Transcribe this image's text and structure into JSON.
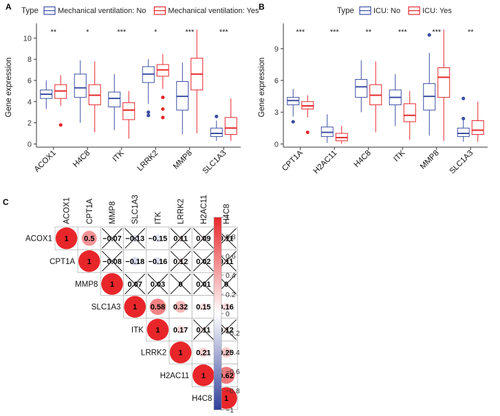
{
  "colors": {
    "no": "#3b4ea3",
    "yes": "#e8262a",
    "cell_border": "#b5b5b5",
    "cbar_neg": "#2e3e9a",
    "cbar_mid": "#ffffff",
    "cbar_pos": "#e8262a"
  },
  "chart_data": [
    {
      "panel": "A",
      "type": "box",
      "legend_title": "Type",
      "legend": [
        "Mechanical ventilation: No",
        "Mechanical ventilation: Yes"
      ],
      "ylabel": "Gene expression",
      "ylim": [
        -0.3,
        11
      ],
      "yticks": [
        0,
        2,
        4,
        6,
        8,
        10
      ],
      "categories": [
        "ACOX1",
        "H4C8",
        "ITK",
        "LRRK2",
        "MMP8",
        "SLC1A3"
      ],
      "significance": [
        "**",
        "*",
        "***",
        "*",
        "***",
        "***"
      ],
      "series": [
        {
          "name": "Mechanical ventilation: No",
          "boxes": [
            {
              "min": 3.3,
              "q1": 4.3,
              "median": 4.7,
              "q3": 5.1,
              "max": 6.0,
              "outliers": []
            },
            {
              "min": 2.0,
              "q1": 4.4,
              "median": 5.3,
              "q3": 6.6,
              "max": 7.9,
              "outliers": []
            },
            {
              "min": 1.3,
              "q1": 3.5,
              "median": 4.3,
              "q3": 4.9,
              "max": 6.6,
              "outliers": []
            },
            {
              "min": 3.8,
              "q1": 5.8,
              "median": 6.6,
              "q3": 7.3,
              "max": 8.0,
              "outliers": [
                3.0,
                2.7
              ]
            },
            {
              "min": 0.9,
              "q1": 3.2,
              "median": 4.5,
              "q3": 5.9,
              "max": 7.7,
              "outliers": []
            },
            {
              "min": 0.3,
              "q1": 0.7,
              "median": 1.0,
              "q3": 1.5,
              "max": 2.2,
              "outliers": [
                2.6
              ]
            }
          ]
        },
        {
          "name": "Mechanical ventilation: Yes",
          "boxes": [
            {
              "min": 3.6,
              "q1": 4.3,
              "median": 5.0,
              "q3": 5.6,
              "max": 6.5,
              "outliers": [
                1.8
              ]
            },
            {
              "min": 1.1,
              "q1": 3.7,
              "median": 4.6,
              "q3": 5.6,
              "max": 7.8,
              "outliers": []
            },
            {
              "min": 0.5,
              "q1": 2.3,
              "median": 3.2,
              "q3": 3.9,
              "max": 5.0,
              "outliers": []
            },
            {
              "min": 5.2,
              "q1": 6.4,
              "median": 7.0,
              "q3": 7.5,
              "max": 8.5,
              "outliers": [
                4.4,
                3.3,
                2.5
              ]
            },
            {
              "min": 1.0,
              "q1": 5.1,
              "median": 6.6,
              "q3": 8.1,
              "max": 10.8,
              "outliers": []
            },
            {
              "min": 0.3,
              "q1": 0.9,
              "median": 1.5,
              "q3": 2.5,
              "max": 4.3,
              "outliers": []
            }
          ]
        }
      ]
    },
    {
      "panel": "B",
      "type": "box",
      "legend_title": "Type",
      "legend": [
        "ICU: No",
        "ICU: Yes"
      ],
      "ylabel": "Gene expression",
      "ylim": [
        -0.3,
        11
      ],
      "yticks": [
        0,
        3,
        6,
        9
      ],
      "categories": [
        "CPT1A",
        "H2AC11",
        "H4C8",
        "ITK",
        "MMP8",
        "SLC1A3"
      ],
      "significance": [
        "***",
        "***",
        "**",
        "***",
        "***",
        "**"
      ],
      "series": [
        {
          "name": "ICU: No",
          "boxes": [
            {
              "min": 2.6,
              "q1": 3.7,
              "median": 4.1,
              "q3": 4.4,
              "max": 5.2,
              "outliers": [
                2.1
              ]
            },
            {
              "min": 0.1,
              "q1": 0.7,
              "median": 1.1,
              "q3": 1.6,
              "max": 2.8,
              "outliers": []
            },
            {
              "min": 3.0,
              "q1": 4.4,
              "median": 5.4,
              "q3": 6.1,
              "max": 7.9,
              "outliers": []
            },
            {
              "min": 1.7,
              "q1": 3.7,
              "median": 4.4,
              "q3": 5.1,
              "max": 6.6,
              "outliers": []
            },
            {
              "min": 0.8,
              "q1": 3.2,
              "median": 4.5,
              "q3": 5.7,
              "max": 8.6,
              "outliers": [
                10.3
              ]
            },
            {
              "min": 0.2,
              "q1": 0.7,
              "median": 1.0,
              "q3": 1.5,
              "max": 2.5,
              "outliers": [
                4.3,
                2.4
              ]
            }
          ]
        },
        {
          "name": "ICU: Yes",
          "boxes": [
            {
              "min": 2.5,
              "q1": 3.3,
              "median": 3.6,
              "q3": 4.0,
              "max": 4.6,
              "outliers": [
                1.1
              ]
            },
            {
              "min": 0.0,
              "q1": 0.3,
              "median": 0.6,
              "q3": 1.0,
              "max": 1.7,
              "outliers": []
            },
            {
              "min": 1.1,
              "q1": 3.7,
              "median": 4.6,
              "q3": 5.6,
              "max": 7.8,
              "outliers": []
            },
            {
              "min": 0.4,
              "q1": 2.1,
              "median": 2.7,
              "q3": 3.8,
              "max": 5.0,
              "outliers": []
            },
            {
              "min": 0.3,
              "q1": 4.4,
              "median": 6.3,
              "q3": 7.2,
              "max": 10.8,
              "outliers": []
            },
            {
              "min": 0.2,
              "q1": 0.9,
              "median": 1.3,
              "q3": 2.2,
              "max": 4.0,
              "outliers": []
            }
          ]
        }
      ]
    },
    {
      "panel": "C",
      "type": "heatmap",
      "variables": [
        "ACOX1",
        "CPT1A",
        "MMP8",
        "SLC1A3",
        "ITK",
        "LRRK2",
        "H2AC11",
        "H4C8"
      ],
      "cells": [
        {
          "row": 0,
          "col": 0,
          "value": 1,
          "label": "1",
          "crossed": false
        },
        {
          "row": 0,
          "col": 1,
          "value": 0.5,
          "label": "0.5",
          "crossed": false
        },
        {
          "row": 0,
          "col": 2,
          "value": -0.07,
          "label": "−0.07",
          "crossed": true
        },
        {
          "row": 0,
          "col": 3,
          "value": -0.13,
          "label": "−0.13",
          "crossed": true
        },
        {
          "row": 0,
          "col": 4,
          "value": -0.15,
          "label": "−0.15",
          "crossed": false
        },
        {
          "row": 0,
          "col": 5,
          "value": 0.11,
          "label": "0.11",
          "crossed": true
        },
        {
          "row": 0,
          "col": 6,
          "value": 0.09,
          "label": "0.09",
          "crossed": true
        },
        {
          "row": 0,
          "col": 7,
          "value": 0.11,
          "label": "0.11",
          "crossed": true
        },
        {
          "row": 1,
          "col": 1,
          "value": 1,
          "label": "1",
          "crossed": false
        },
        {
          "row": 1,
          "col": 2,
          "value": -0.08,
          "label": "−0.08",
          "crossed": true
        },
        {
          "row": 1,
          "col": 3,
          "value": -0.18,
          "label": "−0.18",
          "crossed": false
        },
        {
          "row": 1,
          "col": 4,
          "value": -0.16,
          "label": "−0.16",
          "crossed": false
        },
        {
          "row": 1,
          "col": 5,
          "value": 0.12,
          "label": "0.12",
          "crossed": true
        },
        {
          "row": 1,
          "col": 6,
          "value": 0.02,
          "label": "0.02",
          "crossed": true
        },
        {
          "row": 1,
          "col": 7,
          "value": 0.11,
          "label": "0.11",
          "crossed": true
        },
        {
          "row": 2,
          "col": 2,
          "value": 1,
          "label": "1",
          "crossed": false
        },
        {
          "row": 2,
          "col": 3,
          "value": 0.07,
          "label": "0.07",
          "crossed": true
        },
        {
          "row": 2,
          "col": 4,
          "value": 0.03,
          "label": "0.03",
          "crossed": true
        },
        {
          "row": 2,
          "col": 5,
          "value": 0,
          "label": "0",
          "crossed": true
        },
        {
          "row": 2,
          "col": 6,
          "value": 0.01,
          "label": "0.01",
          "crossed": true
        },
        {
          "row": 2,
          "col": 7,
          "value": 0,
          "label": "0",
          "crossed": true
        },
        {
          "row": 3,
          "col": 3,
          "value": 1,
          "label": "1",
          "crossed": false
        },
        {
          "row": 3,
          "col": 4,
          "value": 0.58,
          "label": "0.58",
          "crossed": false
        },
        {
          "row": 3,
          "col": 5,
          "value": 0.32,
          "label": "0.32",
          "crossed": false
        },
        {
          "row": 3,
          "col": 6,
          "value": 0.15,
          "label": "0.15",
          "crossed": false
        },
        {
          "row": 3,
          "col": 7,
          "value": 0.16,
          "label": "0.16",
          "crossed": false
        },
        {
          "row": 4,
          "col": 4,
          "value": 1,
          "label": "1",
          "crossed": false
        },
        {
          "row": 4,
          "col": 5,
          "value": 0.17,
          "label": "0.17",
          "crossed": false
        },
        {
          "row": 4,
          "col": 6,
          "value": 0.11,
          "label": "0.11",
          "crossed": true
        },
        {
          "row": 4,
          "col": 7,
          "value": 0.12,
          "label": "0.12",
          "crossed": true
        },
        {
          "row": 5,
          "col": 5,
          "value": 1,
          "label": "1",
          "crossed": false
        },
        {
          "row": 5,
          "col": 6,
          "value": 0.21,
          "label": "0.21",
          "crossed": false
        },
        {
          "row": 5,
          "col": 7,
          "value": 0.25,
          "label": "0.25",
          "crossed": false
        },
        {
          "row": 6,
          "col": 6,
          "value": 1,
          "label": "1",
          "crossed": false
        },
        {
          "row": 6,
          "col": 7,
          "value": 0.62,
          "label": "0.62",
          "crossed": false
        },
        {
          "row": 7,
          "col": 7,
          "value": 1,
          "label": "1",
          "crossed": false
        }
      ],
      "colorbar": {
        "range": [
          -1,
          1
        ],
        "ticks": [
          1,
          0.8,
          0.6,
          0.4,
          0.2,
          0,
          -0.2,
          -0.4,
          -0.6,
          -0.8,
          -1
        ],
        "labels": [
          "1",
          "0.8",
          "0.6",
          "0.4",
          "0.2",
          "0",
          "−0.2",
          "−0.4",
          "−0.6",
          "−0.8",
          "−1"
        ]
      }
    }
  ]
}
